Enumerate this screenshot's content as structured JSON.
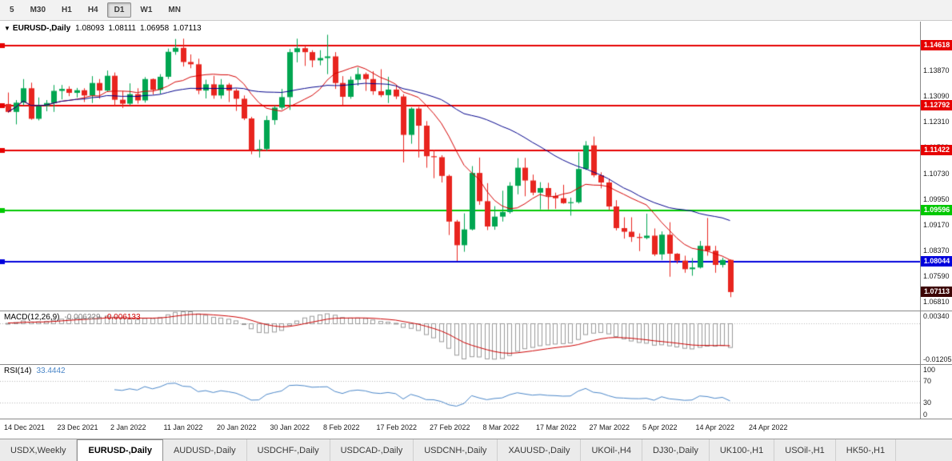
{
  "toolbar": {
    "timeframes": [
      {
        "label": "5",
        "active": false
      },
      {
        "label": "M30",
        "active": false
      },
      {
        "label": "H1",
        "active": false
      },
      {
        "label": "H4",
        "active": false
      },
      {
        "label": "D1",
        "active": true
      },
      {
        "label": "W1",
        "active": false
      },
      {
        "label": "MN",
        "active": false
      }
    ]
  },
  "chart": {
    "title": {
      "arrow": "▼",
      "symbol": "EURUSD-,Daily",
      "open": "1.08093",
      "high": "1.08111",
      "low": "1.06958",
      "close": "1.07113"
    },
    "price_range": {
      "max": 1.1535,
      "min": 1.0655
    },
    "y_ticks": [
      {
        "price": 1.1387,
        "label": "1.13870"
      },
      {
        "price": 1.1309,
        "label": "1.13090"
      },
      {
        "price": 1.1231,
        "label": "1.12310"
      },
      {
        "price": 1.1153,
        "label": "1.11530"
      },
      {
        "price": 1.1073,
        "label": "1.10730"
      },
      {
        "price": 1.0995,
        "label": "1.09950"
      },
      {
        "price": 1.0917,
        "label": "1.09170"
      },
      {
        "price": 1.0837,
        "label": "1.08370"
      },
      {
        "price": 1.0759,
        "label": "1.07590"
      },
      {
        "price": 1.0681,
        "label": "1.06810"
      }
    ],
    "hlines": [
      {
        "price": 1.14618,
        "label": "1.14618",
        "color": "#e60000"
      },
      {
        "price": 1.12792,
        "label": "1.12792",
        "color": "#e60000"
      },
      {
        "price": 1.11422,
        "label": "1.11422",
        "color": "#e60000"
      },
      {
        "price": 1.09596,
        "label": "1.09596",
        "color": "#00c800"
      },
      {
        "price": 1.08044,
        "label": "1.08044",
        "color": "#0000dc"
      }
    ],
    "current_price": {
      "price": 1.07113,
      "label": "1.07113",
      "bg": "#3d0505"
    },
    "colors": {
      "up": "#00a651",
      "down": "#e8251f",
      "ma_fast": "#d40000",
      "ma_slow": "#00008b",
      "background": "#ffffff"
    }
  },
  "chart_data": {
    "type": "candlestick",
    "symbol": "EURUSD",
    "timeframe": "Daily",
    "x_labels": [
      "14 Dec 2021",
      "23 Dec 2021",
      "2 Jan 2022",
      "11 Jan 2022",
      "20 Jan 2022",
      "30 Jan 2022",
      "8 Feb 2022",
      "17 Feb 2022",
      "27 Feb 2022",
      "8 Mar 2022",
      "17 Mar 2022",
      "27 Mar 2022",
      "5 Apr 2022",
      "14 Apr 2022",
      "24 Apr 2022"
    ],
    "bars_per_label": 7,
    "overlays": [
      {
        "name": "ma-fast",
        "type": "sma",
        "period": 10
      },
      {
        "name": "ma-slow",
        "type": "sma",
        "period": 30
      }
    ],
    "candles_ohlc": [
      [
        1.1284,
        1.1319,
        1.1257,
        1.126
      ],
      [
        1.126,
        1.1296,
        1.1222,
        1.1288
      ],
      [
        1.1288,
        1.136,
        1.128,
        1.1332
      ],
      [
        1.1332,
        1.1349,
        1.1236,
        1.1239
      ],
      [
        1.1239,
        1.1304,
        1.1234,
        1.1278
      ],
      [
        1.1278,
        1.1296,
        1.1262,
        1.1287
      ],
      [
        1.1287,
        1.1342,
        1.126,
        1.1324
      ],
      [
        1.1324,
        1.1342,
        1.1298,
        1.133
      ],
      [
        1.133,
        1.1338,
        1.1308,
        1.1318
      ],
      [
        1.1318,
        1.1333,
        1.1304,
        1.1326
      ],
      [
        1.1326,
        1.1332,
        1.129,
        1.131
      ],
      [
        1.131,
        1.1369,
        1.1287,
        1.1348
      ],
      [
        1.1348,
        1.136,
        1.13,
        1.1325
      ],
      [
        1.1325,
        1.1386,
        1.1321,
        1.137
      ],
      [
        1.137,
        1.138,
        1.1279,
        1.1297
      ],
      [
        1.1297,
        1.1324,
        1.1272,
        1.1285
      ],
      [
        1.1285,
        1.1347,
        1.128,
        1.1314
      ],
      [
        1.1314,
        1.1332,
        1.1285,
        1.1295
      ],
      [
        1.1295,
        1.1366,
        1.1288,
        1.136
      ],
      [
        1.136,
        1.1362,
        1.1313,
        1.1327
      ],
      [
        1.1327,
        1.1375,
        1.1315,
        1.1367
      ],
      [
        1.1367,
        1.1453,
        1.136,
        1.1443
      ],
      [
        1.1443,
        1.1482,
        1.1434,
        1.1455
      ],
      [
        1.1455,
        1.1483,
        1.1398,
        1.1412
      ],
      [
        1.1412,
        1.1435,
        1.1393,
        1.1405
      ],
      [
        1.1405,
        1.1422,
        1.1314,
        1.1325
      ],
      [
        1.1325,
        1.1358,
        1.1301,
        1.1344
      ],
      [
        1.1344,
        1.137,
        1.13,
        1.131
      ],
      [
        1.131,
        1.136,
        1.13,
        1.1343
      ],
      [
        1.1343,
        1.1348,
        1.129,
        1.1325
      ],
      [
        1.1325,
        1.133,
        1.1263,
        1.13
      ],
      [
        1.13,
        1.131,
        1.1235,
        1.124
      ],
      [
        1.124,
        1.1245,
        1.1131,
        1.1144
      ],
      [
        1.1144,
        1.1175,
        1.1121,
        1.1147
      ],
      [
        1.1147,
        1.1248,
        1.1141,
        1.1235
      ],
      [
        1.1235,
        1.1279,
        1.1221,
        1.1273
      ],
      [
        1.1273,
        1.133,
        1.1267,
        1.1305
      ],
      [
        1.1305,
        1.1452,
        1.1266,
        1.1442
      ],
      [
        1.1442,
        1.1483,
        1.1411,
        1.1454
      ],
      [
        1.1454,
        1.1461,
        1.14,
        1.1442
      ],
      [
        1.1442,
        1.1448,
        1.1396,
        1.1417
      ],
      [
        1.1417,
        1.1448,
        1.1402,
        1.1424
      ],
      [
        1.1424,
        1.1495,
        1.1375,
        1.1429
      ],
      [
        1.1429,
        1.1442,
        1.133,
        1.1348
      ],
      [
        1.1348,
        1.1369,
        1.128,
        1.1306
      ],
      [
        1.1306,
        1.1368,
        1.13,
        1.1358
      ],
      [
        1.1358,
        1.1395,
        1.134,
        1.1375
      ],
      [
        1.1375,
        1.138,
        1.1324,
        1.136
      ],
      [
        1.136,
        1.1384,
        1.1312,
        1.1323
      ],
      [
        1.1323,
        1.139,
        1.1305,
        1.1311
      ],
      [
        1.1311,
        1.1367,
        1.1287,
        1.1328
      ],
      [
        1.1328,
        1.1342,
        1.1299,
        1.1307
      ],
      [
        1.1307,
        1.1314,
        1.1106,
        1.119
      ],
      [
        1.119,
        1.1274,
        1.1163,
        1.127
      ],
      [
        1.127,
        1.1275,
        1.1121,
        1.1218
      ],
      [
        1.1218,
        1.1232,
        1.109,
        1.1125
      ],
      [
        1.1125,
        1.1145,
        1.1058,
        1.1122
      ],
      [
        1.1122,
        1.1128,
        1.1045,
        1.1065
      ],
      [
        1.1065,
        1.1069,
        1.0885,
        1.0926
      ],
      [
        1.0926,
        1.0931,
        1.0806,
        1.0854
      ],
      [
        1.0854,
        1.0951,
        1.0834,
        1.0902
      ],
      [
        1.0902,
        1.1095,
        1.0899,
        1.1074
      ],
      [
        1.1074,
        1.1121,
        1.0977,
        1.0988
      ],
      [
        1.0988,
        1.1043,
        1.09,
        1.0911
      ],
      [
        1.0911,
        1.0973,
        1.0901,
        1.0941
      ],
      [
        1.0941,
        1.102,
        1.0926,
        1.0955
      ],
      [
        1.0955,
        1.1046,
        1.095,
        1.1035
      ],
      [
        1.1035,
        1.1119,
        1.1009,
        1.109
      ],
      [
        1.109,
        1.112,
        1.1003,
        1.1051
      ],
      [
        1.1051,
        1.1069,
        1.1006,
        1.1014
      ],
      [
        1.1014,
        1.1046,
        1.0963,
        1.1028
      ],
      [
        1.1028,
        1.1044,
        1.0963,
        1.1004
      ],
      [
        1.1004,
        1.1014,
        1.0965,
        1.0997
      ],
      [
        1.0997,
        1.1038,
        1.098,
        1.0982
      ],
      [
        1.0982,
        1.0999,
        1.0944,
        1.0985
      ],
      [
        1.0985,
        1.1137,
        1.0981,
        1.1086
      ],
      [
        1.1086,
        1.1171,
        1.1083,
        1.1158
      ],
      [
        1.1158,
        1.1185,
        1.1061,
        1.1067
      ],
      [
        1.1067,
        1.1076,
        1.1027,
        1.1045
      ],
      [
        1.1045,
        1.1056,
        1.0961,
        1.0972
      ],
      [
        1.0972,
        1.0991,
        1.0899,
        1.0906
      ],
      [
        1.0906,
        1.0939,
        1.0874,
        1.0895
      ],
      [
        1.0895,
        1.0939,
        1.0864,
        1.0879
      ],
      [
        1.0879,
        1.089,
        1.0836,
        1.0876
      ],
      [
        1.0876,
        1.095,
        1.0872,
        1.0883
      ],
      [
        1.0883,
        1.0905,
        1.0821,
        1.0826
      ],
      [
        1.0826,
        1.0896,
        1.0809,
        1.0886
      ],
      [
        1.0886,
        1.0924,
        1.0758,
        1.0828
      ],
      [
        1.0828,
        1.083,
        1.0798,
        1.0807
      ],
      [
        1.0807,
        1.0822,
        1.077,
        1.0781
      ],
      [
        1.0781,
        1.0815,
        1.0761,
        1.0786
      ],
      [
        1.0786,
        1.0867,
        1.0783,
        1.0852
      ],
      [
        1.0852,
        1.0937,
        1.0822,
        1.0837
      ],
      [
        1.0837,
        1.0852,
        1.077,
        1.0794
      ],
      [
        1.0794,
        1.0816,
        1.0786,
        1.0809
      ],
      [
        1.08093,
        1.08111,
        1.06958,
        1.07113
      ]
    ]
  },
  "macd": {
    "label": "MACD(12,26,9)",
    "value_main": "-0.006229",
    "value_signal": "-0.006133",
    "fast": 12,
    "slow": 26,
    "signal": 9,
    "axis_max": 0.0034,
    "axis_min": -0.01205,
    "axis_labels": [
      "0.00340",
      "-0.01205"
    ],
    "hist_color": "#9a9a9a",
    "signal_color": "#cc0000"
  },
  "rsi": {
    "label": "RSI(14)",
    "value": "33.4442",
    "period": 14,
    "levels": [
      70,
      30
    ],
    "axis_labels": [
      "100",
      "70",
      "30",
      "0"
    ],
    "line_color": "#4a86c8"
  },
  "tabs": [
    {
      "label": "USDX,Weekly",
      "active": false
    },
    {
      "label": "EURUSD-,Daily",
      "active": true
    },
    {
      "label": "AUDUSD-,Daily",
      "active": false
    },
    {
      "label": "USDCHF-,Daily",
      "active": false
    },
    {
      "label": "USDCAD-,Daily",
      "active": false
    },
    {
      "label": "USDCNH-,Daily",
      "active": false
    },
    {
      "label": "XAUUSD-,Daily",
      "active": false
    },
    {
      "label": "UKOil-,H4",
      "active": false
    },
    {
      "label": "DJ30-,Daily",
      "active": false
    },
    {
      "label": "UK100-,H1",
      "active": false
    },
    {
      "label": "USOil-,H1",
      "active": false
    },
    {
      "label": "HK50-,H1",
      "active": false
    }
  ]
}
